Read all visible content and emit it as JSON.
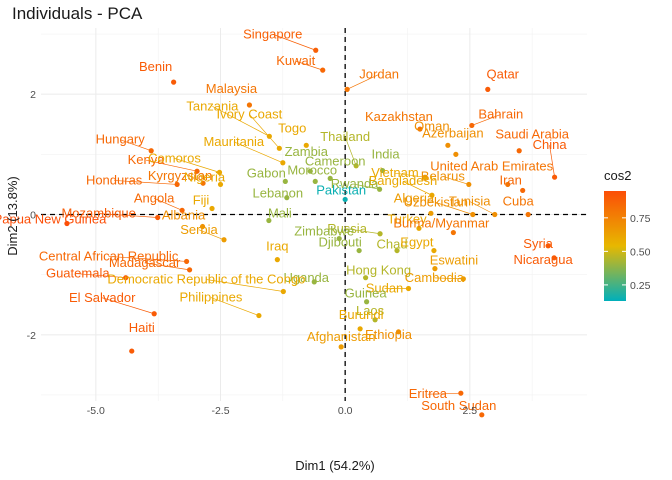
{
  "chart_data": {
    "type": "scatter",
    "title": "Individuals - PCA",
    "xlabel": "Dim1 (54.2%)",
    "ylabel": "Dim2 (13.8%)",
    "xlim": [
      -6.1,
      4.85
    ],
    "ylim": [
      -3.1,
      3.1
    ],
    "x_ticks": [
      -5.0,
      -2.5,
      0.0,
      2.5
    ],
    "x_tick_labels": [
      "-5.0",
      "-2.5",
      "0.0",
      "2.5"
    ],
    "y_ticks": [
      2,
      0,
      -2
    ],
    "y_tick_labels": [
      "2",
      "0",
      "-2"
    ],
    "grid": true,
    "reference_lines": {
      "x": 0,
      "y": 0,
      "style": "dashed"
    },
    "legend": {
      "title": "cos2",
      "placement": "right",
      "ticks": [
        0.75,
        0.5,
        0.25
      ],
      "tick_labels": [
        "0.75",
        "0.50",
        "0.25"
      ],
      "range": [
        0.13,
        0.95
      ]
    },
    "points": [
      {
        "label": "Singapore",
        "x": -0.59,
        "y": 2.73,
        "cos2": 0.88
      },
      {
        "label": "Kuwait",
        "x": -0.45,
        "y": 2.4,
        "cos2": 0.85
      },
      {
        "label": "Benin",
        "x": -3.44,
        "y": 2.2,
        "cos2": 0.9
      },
      {
        "label": "Jordan",
        "x": 0.04,
        "y": 2.08,
        "cos2": 0.8
      },
      {
        "label": "Malaysia",
        "x": -1.92,
        "y": 1.82,
        "cos2": 0.8
      },
      {
        "label": "Qatar",
        "x": 2.86,
        "y": 2.08,
        "cos2": 0.9
      },
      {
        "label": "Bahrain",
        "x": 2.54,
        "y": 1.48,
        "cos2": 0.85
      },
      {
        "label": "Togo",
        "x": -0.78,
        "y": 1.15,
        "cos2": 0.6
      },
      {
        "label": "Tanzania",
        "x": -1.52,
        "y": 1.3,
        "cos2": 0.6
      },
      {
        "label": "Ivory Coast",
        "x": -1.32,
        "y": 1.1,
        "cos2": 0.6
      },
      {
        "label": "Kazakhstan",
        "x": 1.5,
        "y": 1.42,
        "cos2": 0.8
      },
      {
        "label": "Saudi Arabia",
        "x": 3.49,
        "y": 1.06,
        "cos2": 0.85
      },
      {
        "label": "Hungary",
        "x": -3.89,
        "y": 1.06,
        "cos2": 0.85
      },
      {
        "label": "Thailand",
        "x": 0.22,
        "y": 0.81,
        "cos2": 0.45
      },
      {
        "label": "Oman",
        "x": 2.06,
        "y": 1.15,
        "cos2": 0.7
      },
      {
        "label": "Azerbaijan",
        "x": 2.22,
        "y": 1.0,
        "cos2": 0.7
      },
      {
        "label": "China",
        "x": 4.2,
        "y": 0.62,
        "cos2": 0.9
      },
      {
        "label": "Mauritania",
        "x": -1.25,
        "y": 0.86,
        "cos2": 0.6
      },
      {
        "label": "Zambia",
        "x": -0.7,
        "y": 0.72,
        "cos2": 0.4
      },
      {
        "label": "India",
        "x": 0.75,
        "y": 0.73,
        "cos2": 0.4
      },
      {
        "label": "Kenya",
        "x": -2.97,
        "y": 0.72,
        "cos2": 0.85
      },
      {
        "label": "Comoros",
        "x": -2.52,
        "y": 0.7,
        "cos2": 0.6
      },
      {
        "label": "United Arab Emirates",
        "x": 3.26,
        "y": 0.5,
        "cos2": 0.8
      },
      {
        "label": "Honduras",
        "x": -3.37,
        "y": 0.5,
        "cos2": 0.85
      },
      {
        "label": "Kyrgyzstan",
        "x": -2.85,
        "y": 0.52,
        "cos2": 0.8
      },
      {
        "label": "Nigeria",
        "x": -2.5,
        "y": 0.5,
        "cos2": 0.6
      },
      {
        "label": "Gabon",
        "x": -1.2,
        "y": 0.55,
        "cos2": 0.4
      },
      {
        "label": "Cameroon",
        "x": -0.3,
        "y": 0.6,
        "cos2": 0.4
      },
      {
        "label": "Vietnam",
        "x": 1.6,
        "y": 0.62,
        "cos2": 0.6
      },
      {
        "label": "Belarus",
        "x": 2.48,
        "y": 0.5,
        "cos2": 0.7
      },
      {
        "label": "Morocco",
        "x": -0.6,
        "y": 0.55,
        "cos2": 0.4
      },
      {
        "label": "Iran",
        "x": 3.56,
        "y": 0.4,
        "cos2": 0.85
      },
      {
        "label": "Bangladesh",
        "x": 1.74,
        "y": 0.32,
        "cos2": 0.6
      },
      {
        "label": "Angola",
        "x": -3.27,
        "y": 0.07,
        "cos2": 0.85
      },
      {
        "label": "Fiji",
        "x": -2.67,
        "y": 0.1,
        "cos2": 0.6
      },
      {
        "label": "Lebanon",
        "x": -1.17,
        "y": 0.28,
        "cos2": 0.4
      },
      {
        "label": "Rwanda",
        "x": 0.69,
        "y": 0.42,
        "cos2": 0.4
      },
      {
        "label": "Mozambique",
        "x": -3.76,
        "y": -0.05,
        "cos2": 0.9
      },
      {
        "label": "Pakistan",
        "x": 0.0,
        "y": 0.25,
        "cos2": 0.15
      },
      {
        "label": "Algeria",
        "x": 1.72,
        "y": 0.02,
        "cos2": 0.65
      },
      {
        "label": "Uzbekistan",
        "x": 2.56,
        "y": 0.0,
        "cos2": 0.7
      },
      {
        "label": "Tunisia",
        "x": 3.0,
        "y": 0.0,
        "cos2": 0.7
      },
      {
        "label": "Cuba",
        "x": 3.67,
        "y": 0.0,
        "cos2": 0.8
      },
      {
        "label": "Papua New Guinea",
        "x": -5.58,
        "y": -0.15,
        "cos2": 0.95
      },
      {
        "label": "Mali",
        "x": -1.53,
        "y": -0.1,
        "cos2": 0.4
      },
      {
        "label": "Albania",
        "x": -2.86,
        "y": -0.2,
        "cos2": 0.7
      },
      {
        "label": "Turkey",
        "x": 1.48,
        "y": -0.23,
        "cos2": 0.6
      },
      {
        "label": "Burma/Myanmar",
        "x": 2.17,
        "y": -0.3,
        "cos2": 0.8
      },
      {
        "label": "Russia",
        "x": 0.7,
        "y": -0.32,
        "cos2": 0.45
      },
      {
        "label": "Zimbabwe",
        "x": -0.12,
        "y": -0.4,
        "cos2": 0.4
      },
      {
        "label": "Serbia",
        "x": -2.43,
        "y": -0.42,
        "cos2": 0.65
      },
      {
        "label": "Syria",
        "x": 4.07,
        "y": -0.52,
        "cos2": 0.9
      },
      {
        "label": "Central African Republic",
        "x": -3.18,
        "y": -0.78,
        "cos2": 0.85
      },
      {
        "label": "Djibouti",
        "x": 0.28,
        "y": -0.6,
        "cos2": 0.4
      },
      {
        "label": "Chad",
        "x": 1.04,
        "y": -0.6,
        "cos2": 0.45
      },
      {
        "label": "Egypt",
        "x": 1.78,
        "y": -0.6,
        "cos2": 0.6
      },
      {
        "label": "Iraq",
        "x": -1.36,
        "y": -0.75,
        "cos2": 0.6
      },
      {
        "label": "Madagascar",
        "x": -3.12,
        "y": -0.92,
        "cos2": 0.85
      },
      {
        "label": "Nicaragua",
        "x": 4.19,
        "y": -0.72,
        "cos2": 0.9
      },
      {
        "label": "Guatemala",
        "x": -4.4,
        "y": -1.05,
        "cos2": 0.9
      },
      {
        "label": "Eswatini",
        "x": 1.8,
        "y": -0.9,
        "cos2": 0.65
      },
      {
        "label": "Hong Kong",
        "x": 0.41,
        "y": -1.05,
        "cos2": 0.45
      },
      {
        "label": "Uganda",
        "x": -0.62,
        "y": -1.12,
        "cos2": 0.4
      },
      {
        "label": "Cambodia",
        "x": 2.37,
        "y": -1.07,
        "cos2": 0.65
      },
      {
        "label": "Sudan",
        "x": 1.27,
        "y": -1.23,
        "cos2": 0.6
      },
      {
        "label": "Democratic Republic of the Congo",
        "x": -1.24,
        "y": -1.28,
        "cos2": 0.6
      },
      {
        "label": "Guinea",
        "x": 0.43,
        "y": -1.45,
        "cos2": 0.4
      },
      {
        "label": "El Salvador",
        "x": -3.83,
        "y": -1.65,
        "cos2": 0.9
      },
      {
        "label": "Philippines",
        "x": -1.73,
        "y": -1.68,
        "cos2": 0.6
      },
      {
        "label": "Laos",
        "x": 0.6,
        "y": -1.75,
        "cos2": 0.45
      },
      {
        "label": "Burundi",
        "x": 0.3,
        "y": -1.9,
        "cos2": 0.6
      },
      {
        "label": "Ethiopia",
        "x": 1.07,
        "y": -1.95,
        "cos2": 0.7
      },
      {
        "label": "Haiti",
        "x": -4.28,
        "y": -2.27,
        "cos2": 0.9
      },
      {
        "label": "Afghanistan",
        "x": -0.08,
        "y": -2.2,
        "cos2": 0.65
      },
      {
        "label": "Eritrea",
        "x": 2.32,
        "y": -2.97,
        "cos2": 0.85
      },
      {
        "label": "South Sudan",
        "x": 2.74,
        "y": -3.33,
        "cos2": 0.85
      }
    ]
  }
}
